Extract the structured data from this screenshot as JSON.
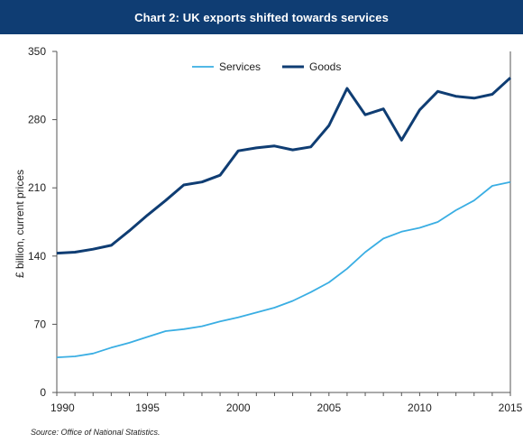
{
  "header": {
    "title": "Chart 2: UK exports shifted towards services"
  },
  "source_note": "Source: Office of National Statistics.",
  "colors": {
    "header_bg": "#0f3d73",
    "services": "#3aaee3",
    "goods": "#0f3d73"
  },
  "chart_data": {
    "type": "line",
    "title": "Chart 2: UK exports shifted towards services",
    "xlabel": "",
    "ylabel": "£ billion, current prices",
    "x": [
      1990,
      1991,
      1992,
      1993,
      1994,
      1995,
      1996,
      1997,
      1998,
      1999,
      2000,
      2001,
      2002,
      2003,
      2004,
      2005,
      2006,
      2007,
      2008,
      2009,
      2010,
      2011,
      2012,
      2013,
      2014,
      2015
    ],
    "xlim": [
      1990,
      2015
    ],
    "ylim": [
      0,
      350
    ],
    "xticks": [
      1990,
      1995,
      2000,
      2005,
      2010,
      2015
    ],
    "yticks": [
      0,
      70,
      140,
      210,
      280,
      350
    ],
    "xtick_labels": [
      "1990",
      "1995",
      "2000",
      "2005",
      "2010",
      "2015"
    ],
    "ytick_labels": [
      "0",
      "70",
      "140",
      "210",
      "280",
      "350"
    ],
    "legend": {
      "placement": "top-center"
    },
    "grid": false,
    "series": [
      {
        "name": "Services",
        "color": "#3aaee3",
        "values": [
          36,
          37,
          40,
          46,
          51,
          57,
          63,
          65,
          68,
          73,
          77,
          82,
          87,
          94,
          103,
          113,
          127,
          144,
          158,
          165,
          169,
          175,
          187,
          197,
          212,
          216
        ]
      },
      {
        "name": "Goods",
        "color": "#0f3d73",
        "values": [
          143,
          144,
          147,
          151,
          166,
          182,
          197,
          213,
          216,
          223,
          248,
          251,
          253,
          249,
          252,
          274,
          312,
          285,
          291,
          259,
          290,
          309,
          304,
          302,
          306,
          323
        ]
      }
    ]
  }
}
